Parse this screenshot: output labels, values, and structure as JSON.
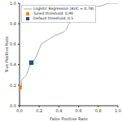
{
  "chart_data": {
    "type": "line",
    "x_label": "False Positive Rate",
    "y_label": "True Positive Rate",
    "xlim": [
      0,
      1
    ],
    "ylim": [
      0,
      1
    ],
    "xticks": [
      {
        "value": 0,
        "label": "0.0"
      },
      0.2,
      0.4,
      0.6,
      0.8,
      {
        "value": 1,
        "label": "1.0"
      }
    ],
    "yticks": [
      {
        "value": 0,
        "label": "0.0"
      },
      0.2,
      0.4,
      0.6,
      0.8,
      {
        "value": 1,
        "label": "1.0"
      }
    ],
    "grid": false,
    "legend": "upper left",
    "series": [
      {
        "name": "Logistic Regression (AUC = 0.78)",
        "type": "line",
        "color": "#aaaaaa",
        "x": [
          0,
          0,
          0.02,
          0.02,
          0.05,
          0.07,
          0.1,
          0.12,
          0.15,
          0.17,
          0.2,
          0.22,
          0.25,
          0.3,
          0.35,
          0.4,
          0.45,
          0.48,
          0.5,
          0.55,
          0.58,
          0.62,
          0.65,
          0.7,
          0.72,
          0.8,
          0.85,
          0.9,
          1
        ],
        "values": [
          0,
          0.18,
          0.18,
          0.25,
          0.28,
          0.3,
          0.38,
          0.42,
          0.45,
          0.48,
          0.55,
          0.6,
          0.62,
          0.65,
          0.68,
          0.7,
          0.72,
          0.75,
          0.8,
          0.83,
          0.86,
          0.86,
          0.9,
          0.95,
          0.97,
          0.97,
          0.98,
          1,
          1
        ]
      },
      {
        "name": "Tuned threshold: 0.90",
        "type": "scatter",
        "color": "#ff7f0e",
        "marker": "circle",
        "x": [
          0
        ],
        "values": [
          0.18
        ]
      },
      {
        "name": "Default threshold: 0.5",
        "type": "scatter",
        "color": "#1f4e8c",
        "marker": "square",
        "x": [
          0.12
        ],
        "values": [
          0.42
        ]
      }
    ]
  }
}
